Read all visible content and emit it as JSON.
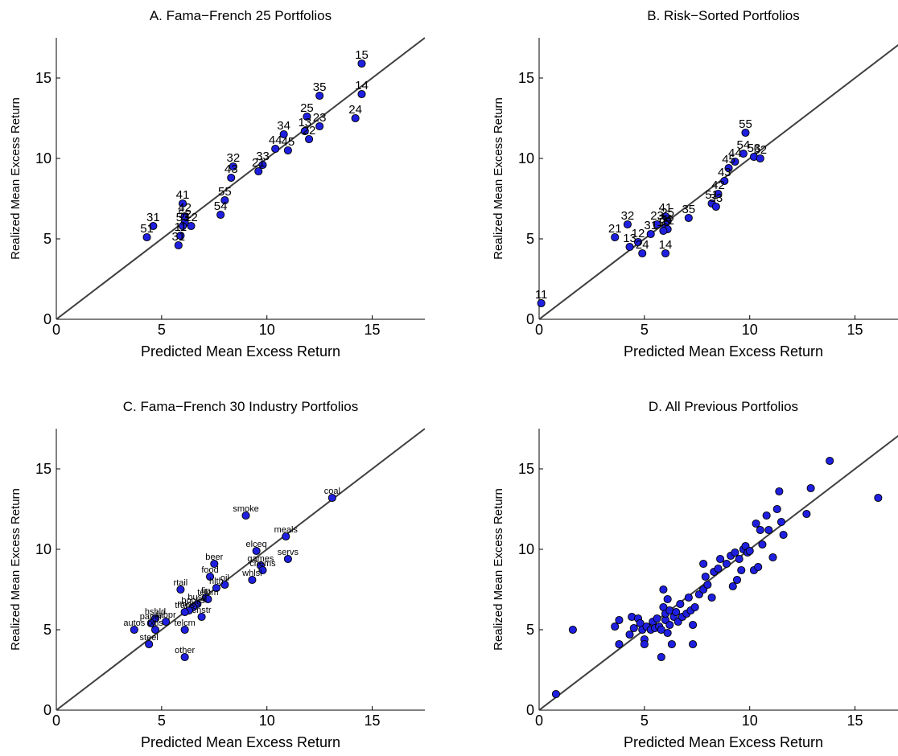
{
  "chart_data": [
    {
      "type": "scatter",
      "title": "A. Fama−French 25 Portfolios",
      "xlabel": "Predicted Mean Excess Return",
      "ylabel": "Realized Mean Excess Return",
      "xlim": [
        0,
        17.5
      ],
      "ylim": [
        0,
        17.5
      ],
      "xticks": [
        "0",
        "5",
        "10",
        "15"
      ],
      "yticks": [
        "0",
        "5",
        "10",
        "15"
      ],
      "reference_line": "45-degree",
      "point_color": "#1f1fe0",
      "points": [
        {
          "x": 14.5,
          "y": 15.9,
          "label": "15"
        },
        {
          "x": 12.5,
          "y": 13.9,
          "label": "35"
        },
        {
          "x": 14.5,
          "y": 14.0,
          "label": "14"
        },
        {
          "x": 11.9,
          "y": 12.6,
          "label": "25"
        },
        {
          "x": 14.2,
          "y": 12.5,
          "label": "24"
        },
        {
          "x": 12.5,
          "y": 12.0,
          "label": "23"
        },
        {
          "x": 11.8,
          "y": 11.7,
          "label": "13"
        },
        {
          "x": 12.0,
          "y": 11.2,
          "label": "22"
        },
        {
          "x": 10.8,
          "y": 11.5,
          "label": "34"
        },
        {
          "x": 10.4,
          "y": 10.6,
          "label": "44"
        },
        {
          "x": 11.0,
          "y": 10.5,
          "label": "45"
        },
        {
          "x": 9.8,
          "y": 9.6,
          "label": "33"
        },
        {
          "x": 9.6,
          "y": 9.2,
          "label": "21"
        },
        {
          "x": 8.4,
          "y": 9.5,
          "label": "32"
        },
        {
          "x": 8.3,
          "y": 8.8,
          "label": "43"
        },
        {
          "x": 8.0,
          "y": 7.4,
          "label": "55"
        },
        {
          "x": 7.8,
          "y": 6.5,
          "label": "54"
        },
        {
          "x": 6.0,
          "y": 7.2,
          "label": "41"
        },
        {
          "x": 6.1,
          "y": 6.4,
          "label": "42"
        },
        {
          "x": 6.1,
          "y": 6.0,
          "label": "52"
        },
        {
          "x": 6.4,
          "y": 5.8,
          "label": "12"
        },
        {
          "x": 6.0,
          "y": 5.8,
          "label": "53"
        },
        {
          "x": 5.9,
          "y": 5.2,
          "label": "11"
        },
        {
          "x": 5.8,
          "y": 4.6,
          "label": "31"
        },
        {
          "x": 4.6,
          "y": 5.8,
          "label": "31"
        },
        {
          "x": 4.3,
          "y": 5.1,
          "label": "51"
        }
      ]
    },
    {
      "type": "scatter",
      "title": "B. Risk−Sorted Portfolios",
      "xlabel": "Predicted Mean Excess Return",
      "ylabel": "Realized Mean Excess Return",
      "xlim": [
        0,
        17.5
      ],
      "ylim": [
        0,
        17.5
      ],
      "xticks": [
        "0",
        "5",
        "10",
        "15"
      ],
      "yticks": [
        "0",
        "5",
        "10",
        "15"
      ],
      "reference_line": "45-degree",
      "point_color": "#1f1fe0",
      "points": [
        {
          "x": 9.8,
          "y": 11.6,
          "label": "55"
        },
        {
          "x": 9.7,
          "y": 10.3,
          "label": "54"
        },
        {
          "x": 9.3,
          "y": 9.8,
          "label": "44"
        },
        {
          "x": 10.2,
          "y": 10.1,
          "label": "53"
        },
        {
          "x": 10.5,
          "y": 10.0,
          "label": "52"
        },
        {
          "x": 9.0,
          "y": 9.4,
          "label": "45"
        },
        {
          "x": 8.8,
          "y": 8.6,
          "label": "43"
        },
        {
          "x": 8.5,
          "y": 7.8,
          "label": "42"
        },
        {
          "x": 8.2,
          "y": 7.2,
          "label": "51"
        },
        {
          "x": 8.4,
          "y": 7.0,
          "label": "33"
        },
        {
          "x": 7.1,
          "y": 6.3,
          "label": "35"
        },
        {
          "x": 6.0,
          "y": 6.4,
          "label": "41"
        },
        {
          "x": 6.1,
          "y": 6.1,
          "label": "25"
        },
        {
          "x": 5.6,
          "y": 5.9,
          "label": "23"
        },
        {
          "x": 6.0,
          "y": 5.7,
          "label": "34"
        },
        {
          "x": 6.1,
          "y": 5.6,
          "label": "22"
        },
        {
          "x": 5.9,
          "y": 5.5,
          "label": "15"
        },
        {
          "x": 5.3,
          "y": 5.3,
          "label": "31"
        },
        {
          "x": 4.7,
          "y": 4.8,
          "label": "12"
        },
        {
          "x": 4.3,
          "y": 4.5,
          "label": "13"
        },
        {
          "x": 3.6,
          "y": 5.1,
          "label": "21"
        },
        {
          "x": 4.2,
          "y": 5.9,
          "label": "32"
        },
        {
          "x": 4.9,
          "y": 4.1,
          "label": "24"
        },
        {
          "x": 6.0,
          "y": 4.1,
          "label": "14"
        },
        {
          "x": 0.1,
          "y": 1.0,
          "label": "11"
        }
      ]
    },
    {
      "type": "scatter",
      "title": "C. Fama−French 30 Industry Portfolios",
      "xlabel": "Predicted Mean Excess Return",
      "ylabel": "Realized Mean Excess Return",
      "xlim": [
        0,
        17.5
      ],
      "ylim": [
        0,
        17.5
      ],
      "xticks": [
        "0",
        "5",
        "10",
        "15"
      ],
      "yticks": [
        "0",
        "5",
        "10",
        "15"
      ],
      "reference_line": "45-degree",
      "point_color": "#1f1fe0",
      "points": [
        {
          "x": 13.1,
          "y": 13.2,
          "label": "coal"
        },
        {
          "x": 9.0,
          "y": 12.1,
          "label": "smoke"
        },
        {
          "x": 10.9,
          "y": 10.8,
          "label": "meals"
        },
        {
          "x": 11.0,
          "y": 9.4,
          "label": "servs"
        },
        {
          "x": 9.5,
          "y": 9.9,
          "label": "elceq"
        },
        {
          "x": 9.7,
          "y": 9.0,
          "label": "games"
        },
        {
          "x": 9.8,
          "y": 8.7,
          "label": "chems"
        },
        {
          "x": 9.3,
          "y": 8.1,
          "label": "whlsl"
        },
        {
          "x": 7.5,
          "y": 9.1,
          "label": "beer"
        },
        {
          "x": 7.3,
          "y": 8.3,
          "label": "food"
        },
        {
          "x": 8.0,
          "y": 7.8,
          "label": "oil"
        },
        {
          "x": 7.6,
          "y": 7.6,
          "label": "hlth"
        },
        {
          "x": 5.9,
          "y": 7.5,
          "label": "rtail"
        },
        {
          "x": 7.1,
          "y": 7.0,
          "label": "fin"
        },
        {
          "x": 7.2,
          "y": 6.9,
          "label": "telcm"
        },
        {
          "x": 6.7,
          "y": 6.6,
          "label": "busq"
        },
        {
          "x": 6.5,
          "y": 6.4,
          "label": "books"
        },
        {
          "x": 6.3,
          "y": 6.2,
          "label": "mines"
        },
        {
          "x": 6.9,
          "y": 5.8,
          "label": "cnstr"
        },
        {
          "x": 6.1,
          "y": 6.1,
          "label": "trans"
        },
        {
          "x": 4.7,
          "y": 5.7,
          "label": "hshld"
        },
        {
          "x": 4.5,
          "y": 5.4,
          "label": "paper"
        },
        {
          "x": 5.2,
          "y": 5.5,
          "label": "fabpr"
        },
        {
          "x": 3.7,
          "y": 5.0,
          "label": "autos"
        },
        {
          "x": 4.7,
          "y": 5.0,
          "label": "txtls"
        },
        {
          "x": 6.1,
          "y": 5.0,
          "label": "telcm"
        },
        {
          "x": 4.4,
          "y": 4.1,
          "label": "steel"
        },
        {
          "x": 6.1,
          "y": 3.3,
          "label": "other"
        }
      ]
    },
    {
      "type": "scatter",
      "title": "D. All Previous Portfolios",
      "xlabel": "Predicted Mean Excess Return",
      "ylabel": "Realized Mean Excess Return",
      "xlim": [
        0,
        17.5
      ],
      "ylim": [
        0,
        17.5
      ],
      "xticks": [
        "0",
        "5",
        "10",
        "15"
      ],
      "yticks": [
        "0",
        "5",
        "10",
        "15"
      ],
      "reference_line": "45-degree",
      "point_color": "#1f1fe0",
      "points": [
        {
          "x": 0.8,
          "y": 1.0
        },
        {
          "x": 1.6,
          "y": 5.0
        },
        {
          "x": 3.6,
          "y": 5.2
        },
        {
          "x": 3.8,
          "y": 5.6
        },
        {
          "x": 3.8,
          "y": 4.1
        },
        {
          "x": 4.3,
          "y": 4.7
        },
        {
          "x": 4.4,
          "y": 5.8
        },
        {
          "x": 4.5,
          "y": 5.1
        },
        {
          "x": 4.7,
          "y": 5.7
        },
        {
          "x": 4.8,
          "y": 5.4
        },
        {
          "x": 4.9,
          "y": 5.0
        },
        {
          "x": 5.0,
          "y": 4.4
        },
        {
          "x": 5.0,
          "y": 4.1
        },
        {
          "x": 5.1,
          "y": 5.2
        },
        {
          "x": 5.3,
          "y": 5.0
        },
        {
          "x": 5.4,
          "y": 5.5
        },
        {
          "x": 5.5,
          "y": 5.1
        },
        {
          "x": 5.6,
          "y": 5.7
        },
        {
          "x": 5.7,
          "y": 5.2
        },
        {
          "x": 5.8,
          "y": 3.3
        },
        {
          "x": 5.8,
          "y": 5.0
        },
        {
          "x": 5.9,
          "y": 6.4
        },
        {
          "x": 5.9,
          "y": 7.5
        },
        {
          "x": 6.0,
          "y": 5.6
        },
        {
          "x": 6.0,
          "y": 6.0
        },
        {
          "x": 6.1,
          "y": 4.8
        },
        {
          "x": 6.1,
          "y": 6.9
        },
        {
          "x": 6.2,
          "y": 5.3
        },
        {
          "x": 6.2,
          "y": 6.2
        },
        {
          "x": 6.3,
          "y": 4.1
        },
        {
          "x": 6.4,
          "y": 5.8
        },
        {
          "x": 6.5,
          "y": 6.1
        },
        {
          "x": 6.6,
          "y": 5.5
        },
        {
          "x": 6.7,
          "y": 6.6
        },
        {
          "x": 6.8,
          "y": 5.8
        },
        {
          "x": 7.0,
          "y": 6.0
        },
        {
          "x": 7.1,
          "y": 7.0
        },
        {
          "x": 7.2,
          "y": 6.2
        },
        {
          "x": 7.3,
          "y": 4.1
        },
        {
          "x": 7.3,
          "y": 5.3
        },
        {
          "x": 7.4,
          "y": 6.4
        },
        {
          "x": 7.6,
          "y": 7.2
        },
        {
          "x": 7.8,
          "y": 7.5
        },
        {
          "x": 7.8,
          "y": 9.1
        },
        {
          "x": 7.9,
          "y": 8.3
        },
        {
          "x": 8.0,
          "y": 7.8
        },
        {
          "x": 8.2,
          "y": 7.0
        },
        {
          "x": 8.3,
          "y": 8.6
        },
        {
          "x": 8.5,
          "y": 8.8
        },
        {
          "x": 8.6,
          "y": 9.4
        },
        {
          "x": 8.9,
          "y": 9.1
        },
        {
          "x": 9.1,
          "y": 9.6
        },
        {
          "x": 9.2,
          "y": 7.7
        },
        {
          "x": 9.3,
          "y": 9.8
        },
        {
          "x": 9.4,
          "y": 8.1
        },
        {
          "x": 9.5,
          "y": 9.4
        },
        {
          "x": 9.6,
          "y": 8.7
        },
        {
          "x": 9.7,
          "y": 10.0
        },
        {
          "x": 9.8,
          "y": 10.2
        },
        {
          "x": 9.9,
          "y": 9.8
        },
        {
          "x": 10.0,
          "y": 9.9
        },
        {
          "x": 10.2,
          "y": 8.7
        },
        {
          "x": 10.3,
          "y": 11.6
        },
        {
          "x": 10.4,
          "y": 8.9
        },
        {
          "x": 10.5,
          "y": 11.2
        },
        {
          "x": 10.6,
          "y": 10.3
        },
        {
          "x": 10.8,
          "y": 12.1
        },
        {
          "x": 10.9,
          "y": 11.2
        },
        {
          "x": 11.1,
          "y": 9.5
        },
        {
          "x": 11.3,
          "y": 12.5
        },
        {
          "x": 11.4,
          "y": 13.6
        },
        {
          "x": 11.5,
          "y": 11.7
        },
        {
          "x": 11.6,
          "y": 10.9
        },
        {
          "x": 12.7,
          "y": 12.2
        },
        {
          "x": 12.9,
          "y": 13.8
        },
        {
          "x": 13.8,
          "y": 15.5
        },
        {
          "x": 16.1,
          "y": 13.2
        }
      ]
    }
  ]
}
